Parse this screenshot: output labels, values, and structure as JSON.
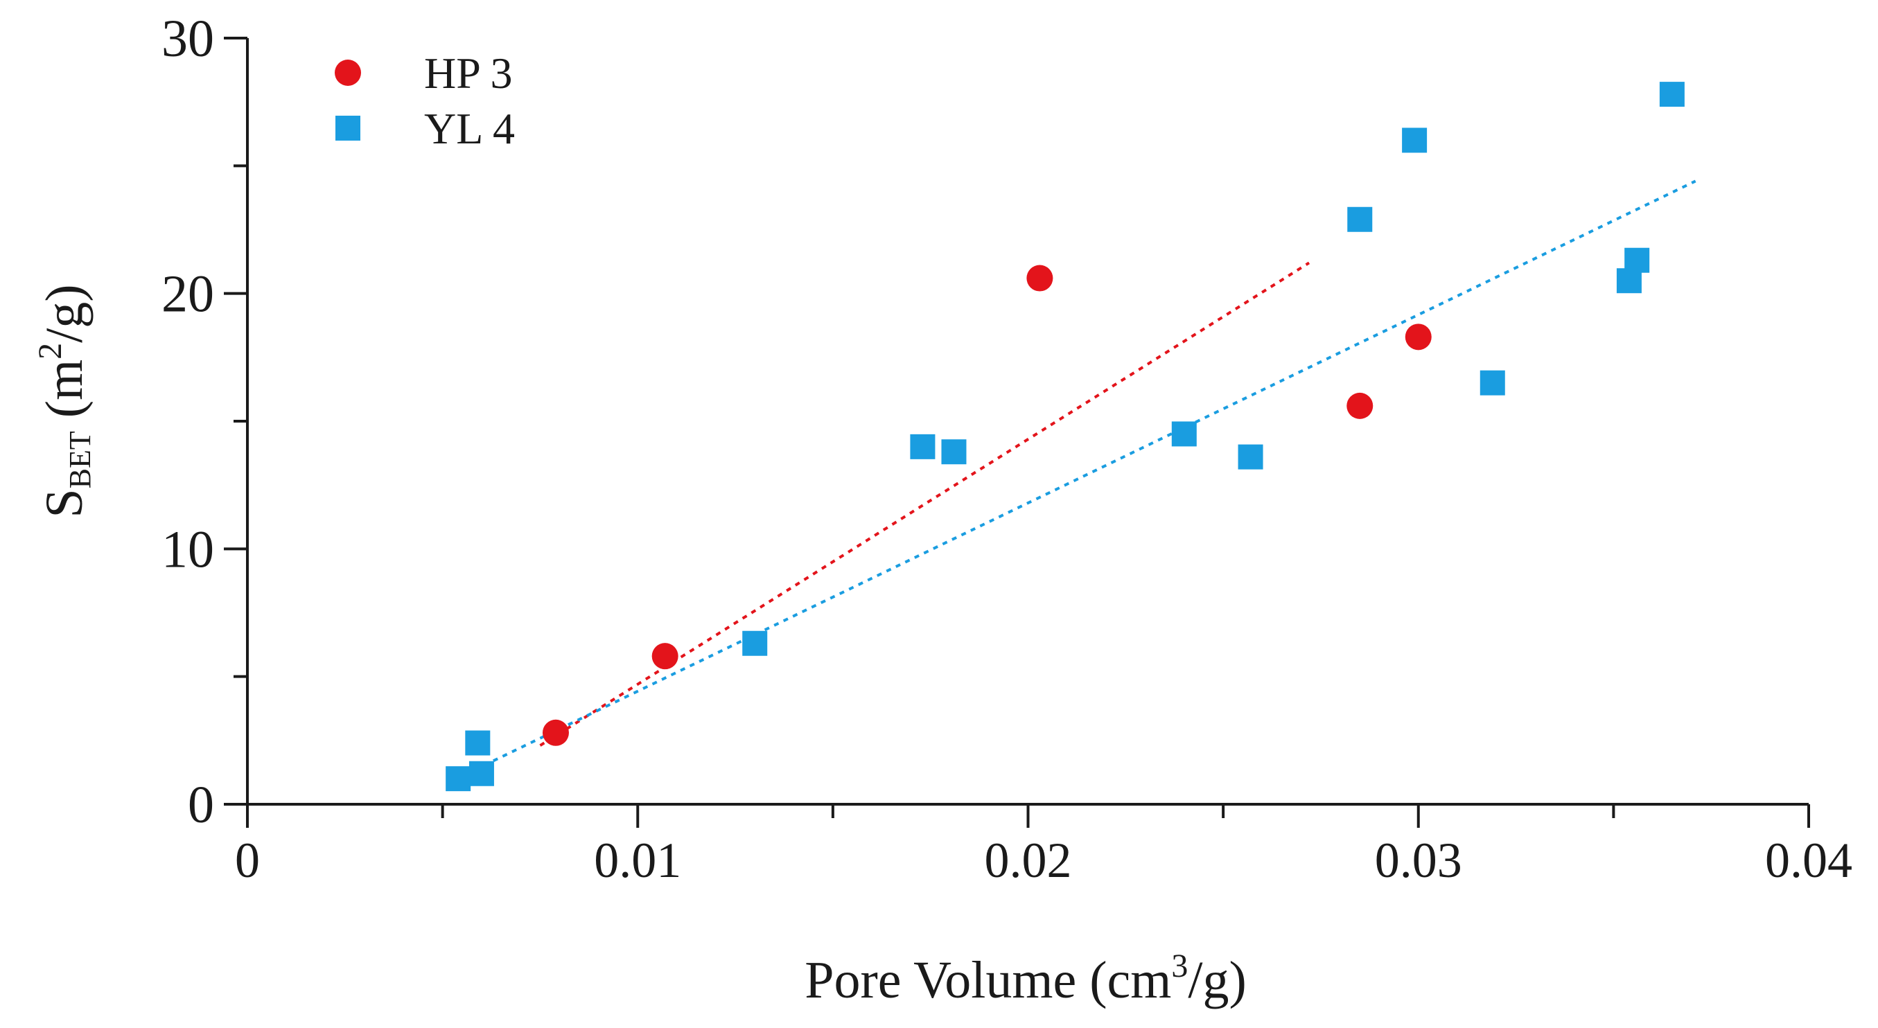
{
  "chart_data": {
    "type": "scatter",
    "title": "",
    "xlabel": {
      "main": "Pore Volume (cm",
      "sup": "3",
      "tail": "/g)"
    },
    "ylabel": {
      "main": "S",
      "sub": "BET",
      "mid": " (m",
      "sup": "2",
      "tail": "/g)"
    },
    "xlim": [
      0,
      0.04
    ],
    "ylim": [
      0,
      30
    ],
    "x_major_ticks": [
      0,
      0.01,
      0.02,
      0.03,
      0.04
    ],
    "x_tick_labels": [
      "0",
      "0.01",
      "0.02",
      "0.03",
      "0.04"
    ],
    "x_minor_ticks": [
      0.005,
      0.015,
      0.025,
      0.035
    ],
    "y_major_ticks": [
      0,
      10,
      20,
      30
    ],
    "y_tick_labels": [
      "0",
      "10",
      "20",
      "30"
    ],
    "y_minor_ticks": [
      5,
      15,
      25
    ],
    "grid": false,
    "legend_position": "top-left",
    "series": [
      {
        "name": "HP 3",
        "marker": "circle",
        "color": "#e3141b",
        "points": [
          {
            "x": 0.0079,
            "y": 2.8
          },
          {
            "x": 0.0107,
            "y": 5.8
          },
          {
            "x": 0.0203,
            "y": 20.6
          },
          {
            "x": 0.0285,
            "y": 15.6
          },
          {
            "x": 0.03,
            "y": 18.3
          }
        ],
        "trendline": {
          "style": "dotted",
          "x0": 0.0075,
          "y0": 2.3,
          "x1": 0.0272,
          "y1": 21.2
        }
      },
      {
        "name": "YL 4",
        "marker": "square",
        "color": "#1a9de0",
        "points": [
          {
            "x": 0.0054,
            "y": 1.0
          },
          {
            "x": 0.006,
            "y": 1.2
          },
          {
            "x": 0.0059,
            "y": 2.4
          },
          {
            "x": 0.013,
            "y": 6.3
          },
          {
            "x": 0.0173,
            "y": 14.0
          },
          {
            "x": 0.0181,
            "y": 13.8
          },
          {
            "x": 0.024,
            "y": 14.5
          },
          {
            "x": 0.0257,
            "y": 13.6
          },
          {
            "x": 0.0285,
            "y": 22.9
          },
          {
            "x": 0.0299,
            "y": 26.0
          },
          {
            "x": 0.0319,
            "y": 16.5
          },
          {
            "x": 0.0354,
            "y": 20.5
          },
          {
            "x": 0.0356,
            "y": 21.3
          },
          {
            "x": 0.0365,
            "y": 27.8
          }
        ],
        "trendline": {
          "style": "dotted",
          "x0": 0.0063,
          "y0": 1.7,
          "x1": 0.0371,
          "y1": 24.4
        }
      }
    ]
  }
}
